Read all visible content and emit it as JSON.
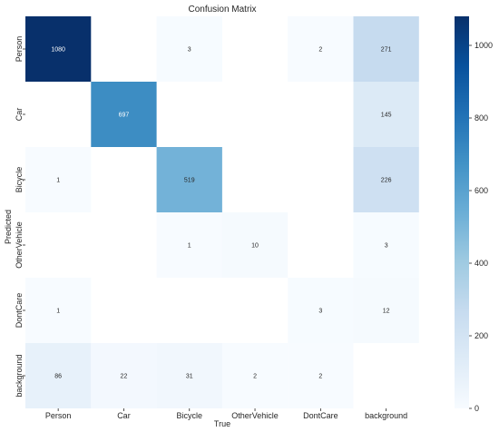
{
  "chart_data": {
    "type": "heatmap",
    "title": "Confusion Matrix",
    "xlabel": "True",
    "ylabel": "Predicted",
    "x_categories": [
      "Person",
      "Car",
      "Bicycle",
      "OtherVehicle",
      "DontCare",
      "background"
    ],
    "y_categories": [
      "Person",
      "Car",
      "Bicycle",
      "OtherVehicle",
      "DontCare",
      "background"
    ],
    "values": [
      [
        1080,
        null,
        3,
        null,
        2,
        271
      ],
      [
        null,
        697,
        null,
        null,
        null,
        145
      ],
      [
        1,
        null,
        519,
        null,
        null,
        226
      ],
      [
        null,
        null,
        1,
        10,
        null,
        3
      ],
      [
        1,
        null,
        null,
        null,
        3,
        12
      ],
      [
        86,
        22,
        31,
        2,
        2,
        null
      ]
    ],
    "colormap": "Blues",
    "vmin": 0,
    "vmax": 1080,
    "colorbar_ticks": [
      0,
      200,
      400,
      600,
      800,
      1000
    ],
    "grid": false
  }
}
